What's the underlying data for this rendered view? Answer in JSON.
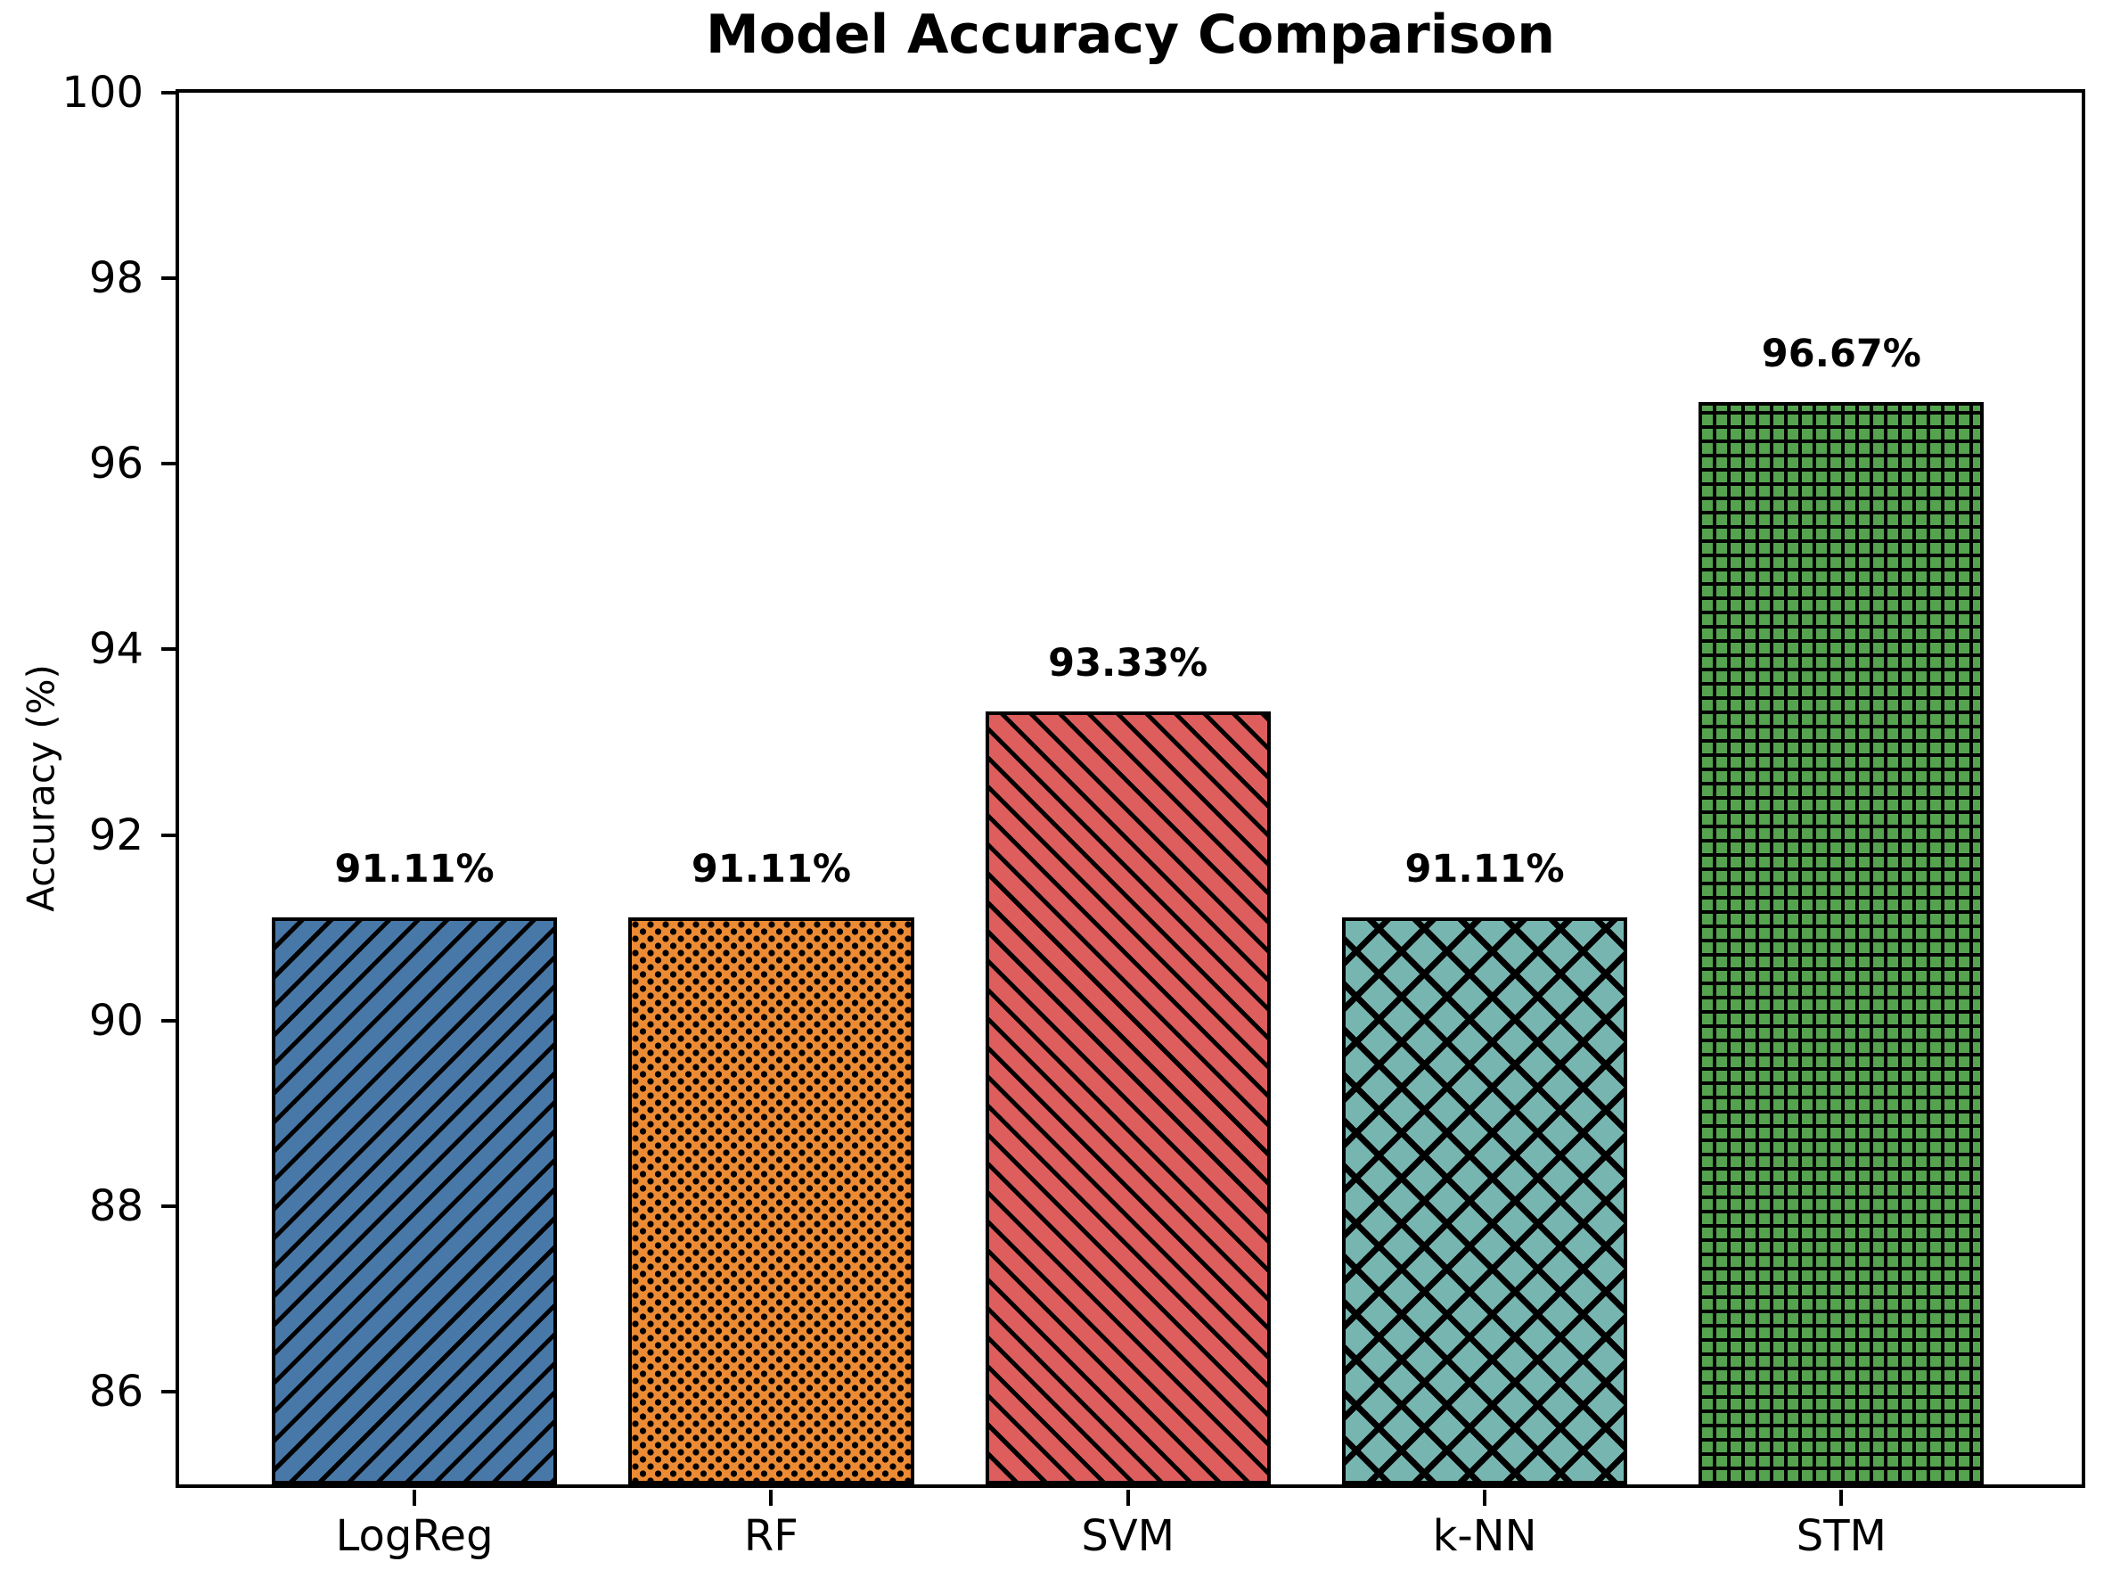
{
  "chart_data": {
    "type": "bar",
    "title": "Model Accuracy Comparison",
    "xlabel": "",
    "ylabel": "Accuracy (%)",
    "categories": [
      "LogReg",
      "RF",
      "SVM",
      "k-NN",
      "STM"
    ],
    "values": [
      91.11,
      91.11,
      93.33,
      91.11,
      96.67
    ],
    "value_labels": [
      "91.11%",
      "91.11%",
      "93.33%",
      "91.11%",
      "96.67%"
    ],
    "bar_colors": [
      "#4878a8",
      "#ec8b33",
      "#de5d5d",
      "#77b5b0",
      "#55a34f"
    ],
    "bar_hatches": [
      "/",
      ".",
      "\\",
      "x",
      "+"
    ],
    "edge_color": "#000000",
    "text_color": "#000000",
    "background_color": "#ffffff",
    "ylim": [
      85,
      100
    ],
    "yticks": [
      86,
      88,
      90,
      92,
      94,
      96,
      98,
      100
    ],
    "grid": "off",
    "legend": "none"
  }
}
